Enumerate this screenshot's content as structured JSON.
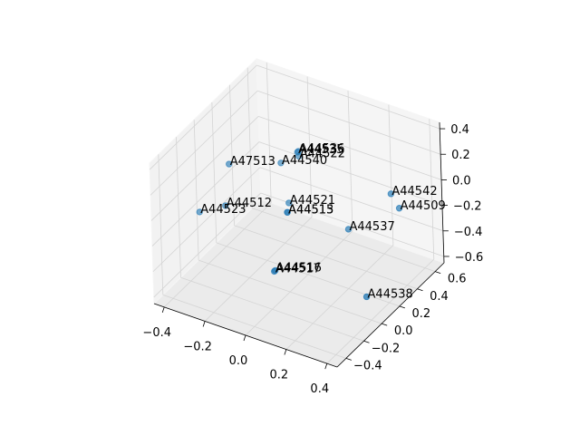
{
  "chart_data": {
    "type": "scatter3d",
    "labels": [
      "A44536",
      "A44535",
      "A44522",
      "A44540",
      "A47513",
      "A44542",
      "A44509",
      "A44521",
      "A44515",
      "A44513",
      "A44512",
      "A44523",
      "A44537",
      "A44517",
      "A44516",
      "A44538"
    ],
    "x": [
      -0.17,
      -0.17,
      -0.15,
      -0.19,
      -0.32,
      0.27,
      0.3,
      -0.12,
      -0.12,
      -0.12,
      -0.34,
      -0.41,
      0.14,
      -0.08,
      -0.08,
      0.32
    ],
    "y": [
      0.51,
      0.5,
      0.47,
      0.36,
      0.08,
      0.54,
      0.56,
      0.28,
      0.26,
      0.26,
      0.07,
      -0.06,
      0.35,
      0.01,
      0.02,
      0.13
    ],
    "z": [
      0.01,
      0.01,
      0.01,
      0.01,
      0.12,
      -0.1,
      -0.21,
      -0.21,
      -0.27,
      -0.27,
      -0.21,
      -0.21,
      -0.32,
      -0.54,
      -0.54,
      -0.6
    ],
    "color": "#1f77b4",
    "xlim": [
      -0.45,
      0.45
    ],
    "ylim": [
      -0.5,
      0.7
    ],
    "zlim": [
      -0.65,
      0.45
    ],
    "xticks": [
      {
        "value": -0.4,
        "label": "−0.4"
      },
      {
        "value": -0.2,
        "label": "−0.2"
      },
      {
        "value": 0.0,
        "label": "0.0"
      },
      {
        "value": 0.2,
        "label": "0.2"
      },
      {
        "value": 0.4,
        "label": "0.4"
      }
    ],
    "yticks": [
      {
        "value": -0.4,
        "label": "−0.4"
      },
      {
        "value": -0.2,
        "label": "−0.2"
      },
      {
        "value": 0.0,
        "label": "0.0"
      },
      {
        "value": 0.2,
        "label": "0.2"
      },
      {
        "value": 0.4,
        "label": "0.4"
      },
      {
        "value": 0.6,
        "label": "0.6"
      }
    ],
    "zticks": [
      {
        "value": -0.6,
        "label": "−0.6"
      },
      {
        "value": -0.4,
        "label": "−0.4"
      },
      {
        "value": -0.2,
        "label": "−0.2"
      },
      {
        "value": 0.0,
        "label": "0.0"
      },
      {
        "value": 0.2,
        "label": "0.2"
      },
      {
        "value": 0.4,
        "label": "0.4"
      }
    ],
    "grid": true
  }
}
